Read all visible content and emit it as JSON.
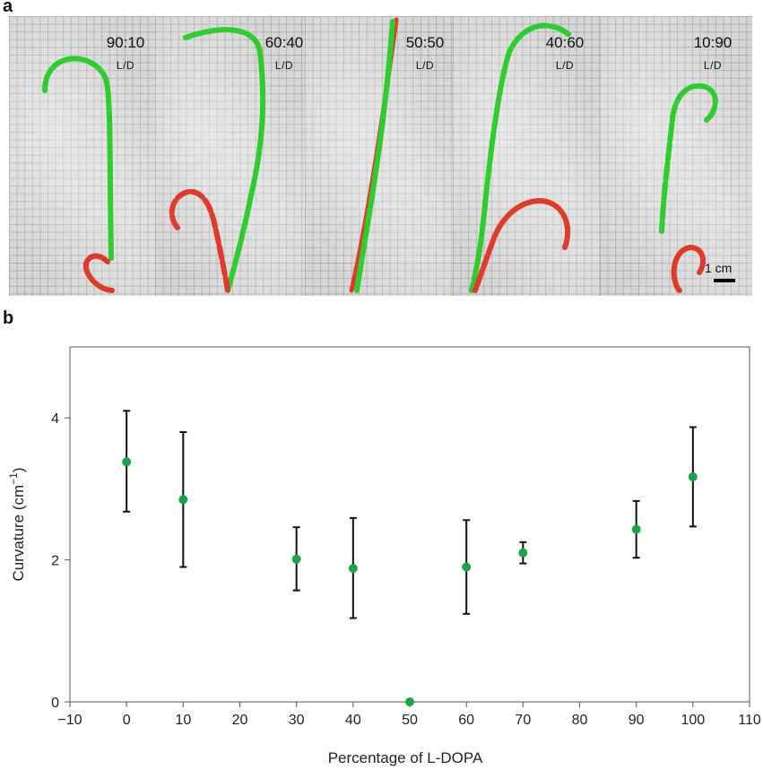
{
  "panel_a": {
    "label": "a",
    "ratio_suffix": "L/D",
    "frames": [
      {
        "ratio": "90:10"
      },
      {
        "ratio": "60:40"
      },
      {
        "ratio": "50:50"
      },
      {
        "ratio": "40:60"
      },
      {
        "ratio": "10:90"
      }
    ],
    "scale_bar": "1 cm",
    "colors": {
      "green": "#2ecc2e",
      "red": "#e03a2a"
    }
  },
  "panel_b": {
    "label": "b"
  },
  "chart_data": {
    "type": "scatter",
    "title": "",
    "xlabel": "Percentage of L-DOPA",
    "ylabel": "Curvature (cm⁻¹)",
    "xlim": [
      -10,
      110
    ],
    "ylim": [
      0,
      5
    ],
    "xticks": [
      -10,
      0,
      10,
      20,
      30,
      40,
      50,
      60,
      70,
      80,
      90,
      100,
      110
    ],
    "xtick_labels": [
      "−10",
      "0",
      "10",
      "20",
      "30",
      "40",
      "50",
      "60",
      "70",
      "80",
      "90",
      "100",
      "110"
    ],
    "yticks": [
      0,
      2,
      4
    ],
    "ytick_labels": [
      "0",
      "2",
      "4"
    ],
    "grid": false,
    "marker_color": "#1aa34a",
    "errorbar_color": "#111111",
    "points": [
      {
        "x": 0,
        "y": 3.38,
        "err_low": 2.68,
        "err_high": 4.1
      },
      {
        "x": 10,
        "y": 2.85,
        "err_low": 1.9,
        "err_high": 3.8
      },
      {
        "x": 30,
        "y": 2.01,
        "err_low": 1.57,
        "err_high": 2.46
      },
      {
        "x": 40,
        "y": 1.88,
        "err_low": 1.18,
        "err_high": 2.59
      },
      {
        "x": 50,
        "y": 0.0,
        "err_low": 0.0,
        "err_high": 0.0
      },
      {
        "x": 60,
        "y": 1.9,
        "err_low": 1.24,
        "err_high": 2.56
      },
      {
        "x": 70,
        "y": 2.1,
        "err_low": 1.95,
        "err_high": 2.25
      },
      {
        "x": 90,
        "y": 2.43,
        "err_low": 2.03,
        "err_high": 2.83
      },
      {
        "x": 100,
        "y": 3.17,
        "err_low": 2.47,
        "err_high": 3.87
      }
    ]
  }
}
